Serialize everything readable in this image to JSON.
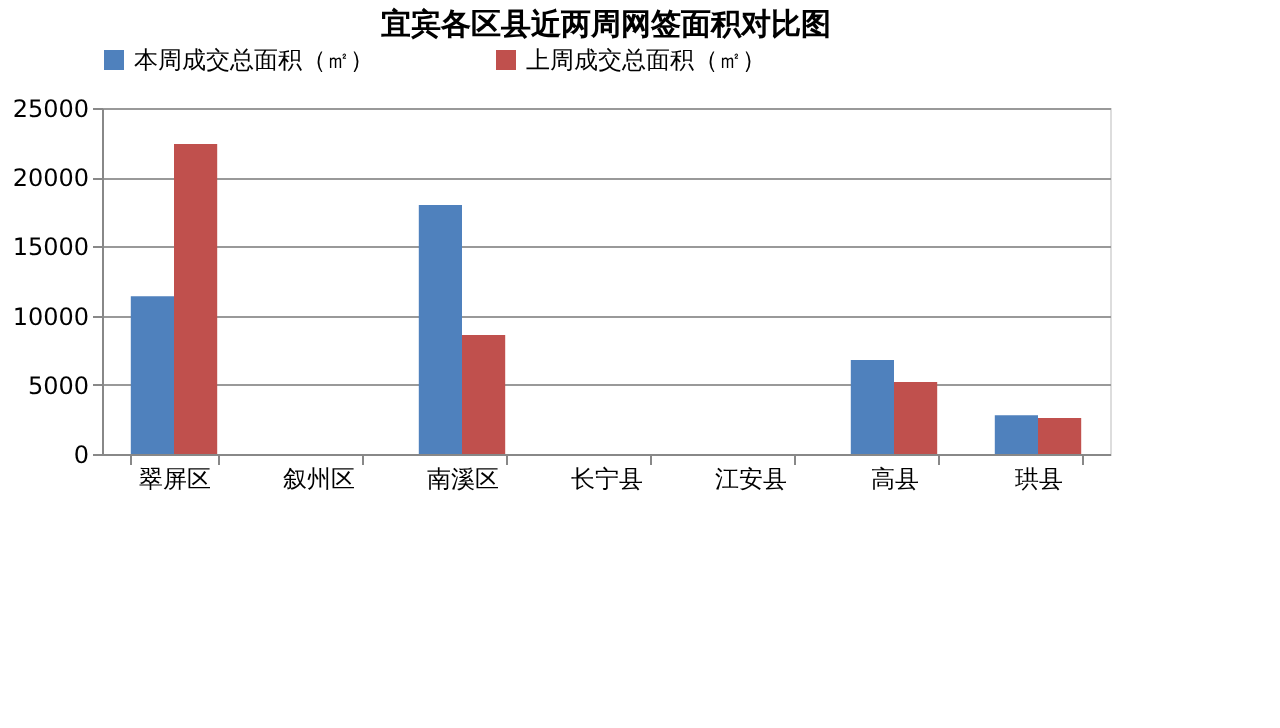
{
  "chart_data": {
    "type": "bar",
    "title": "宜宾各区县近两周网签面积对比图",
    "categories": [
      "翠屏区",
      "叙州区",
      "南溪区",
      "长宁县",
      "江安县",
      "高县",
      "珙县"
    ],
    "series": [
      {
        "name": "本周成交总面积（㎡）",
        "color": "#4f81bd",
        "values": [
          11400,
          0,
          18000,
          0,
          0,
          6800,
          2800
        ]
      },
      {
        "name": "上周成交总面积（㎡）",
        "color": "#c0504d",
        "values": [
          22400,
          0,
          8600,
          0,
          0,
          5200,
          2600
        ]
      }
    ],
    "ylim": [
      0,
      25000
    ],
    "yticks": [
      0,
      5000,
      10000,
      15000,
      20000,
      25000
    ],
    "grid": "y",
    "legend": "top"
  }
}
